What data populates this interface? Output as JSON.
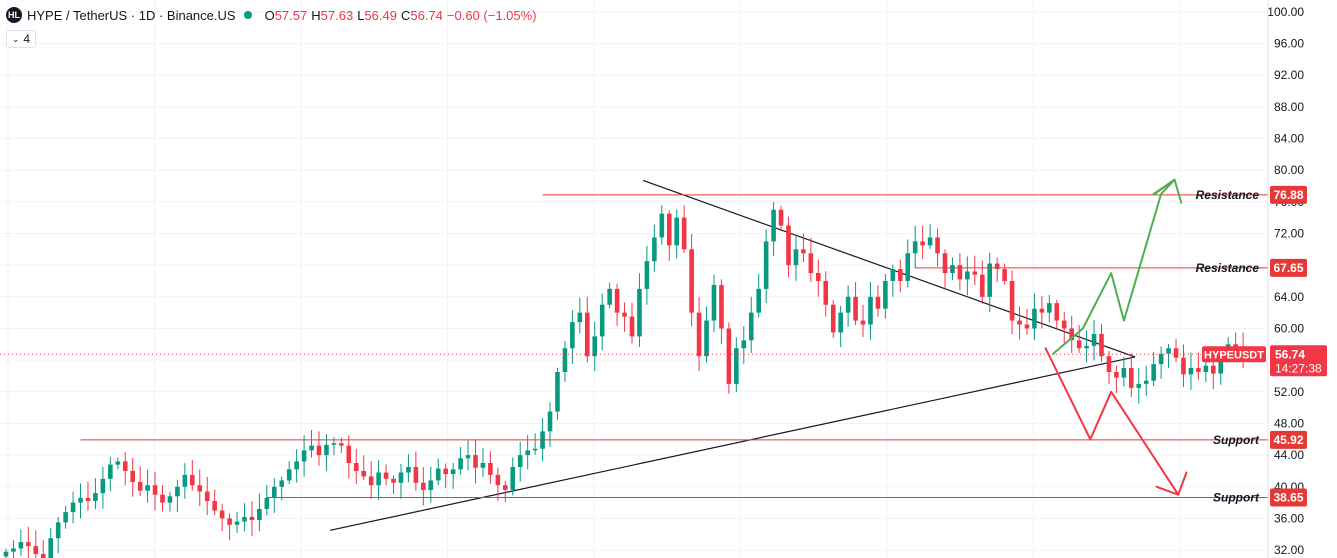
{
  "header": {
    "logo_text": "HL",
    "symbol": "HYPE / TetherUS · 1D · Binance.US",
    "open_label": "O",
    "open": "57.57",
    "high_label": "H",
    "high": "57.63",
    "low_label": "L",
    "low": "56.49",
    "close_label": "C",
    "close": "56.74",
    "change": "−0.60 (−1.05%)"
  },
  "indicator_toggle": {
    "count": "4",
    "icon": "chevron-down-icon"
  },
  "colors": {
    "up": "#089981",
    "down": "#f23645",
    "level": "#e53935",
    "trend": "#131722",
    "bull_arrow": "#4caf50",
    "bear_arrow": "#f23645"
  },
  "chart_data": {
    "type": "candlestick",
    "y_axis": {
      "min": 31,
      "max": 101.5,
      "ticks": [
        "32.00",
        "36.00",
        "40.00",
        "44.00",
        "48.00",
        "52.00",
        "56.00",
        "60.00",
        "64.00",
        "68.00",
        "72.00",
        "76.00",
        "80.00",
        "84.00",
        "88.00",
        "92.00",
        "96.00",
        "100.00"
      ],
      "position": "right"
    },
    "grid": true,
    "x_range": [
      0,
      168
    ],
    "candles_close": [
      31.8,
      32.2,
      33.0,
      32.5,
      31.5,
      31.0,
      33.5,
      35.5,
      36.8,
      38.0,
      38.6,
      38.2,
      39.2,
      41.0,
      42.8,
      43.2,
      42.0,
      40.6,
      39.5,
      40.2,
      39.0,
      38.0,
      38.8,
      40.0,
      41.5,
      40.2,
      39.4,
      38.2,
      37.0,
      36.0,
      35.2,
      35.6,
      36.2,
      35.8,
      37.2,
      38.6,
      40.0,
      40.8,
      42.2,
      43.2,
      44.6,
      45.2,
      44.0,
      45.3,
      45.5,
      45.2,
      43.0,
      42.0,
      41.3,
      40.2,
      41.8,
      41.0,
      40.5,
      41.8,
      42.5,
      40.5,
      39.6,
      40.8,
      42.3,
      41.6,
      42.2,
      43.6,
      44.0,
      42.4,
      43.0,
      41.5,
      40.2,
      39.6,
      42.5,
      44.0,
      44.6,
      44.8,
      47.0,
      49.5,
      54.5,
      57.5,
      60.8,
      62.0,
      56.5,
      59.0,
      63.0,
      65.0,
      62.0,
      61.5,
      59.0,
      65.0,
      68.5,
      71.5,
      74.5,
      70.5,
      74.0,
      70.0,
      62.0,
      56.5,
      61.0,
      65.5,
      60.0,
      53.0,
      57.5,
      58.5,
      62.0,
      65.0,
      71.0,
      75.0,
      73.0,
      68.0,
      70.0,
      69.5,
      67.0,
      66.0,
      63.0,
      59.5,
      62.0,
      64.0,
      61.0,
      60.5,
      64.0,
      62.5,
      66.0,
      67.5,
      66.0,
      69.5,
      71.0,
      70.5,
      71.5,
      69.5,
      67.0,
      68.0,
      66.2,
      67.2,
      66.8,
      64.0,
      68.2,
      67.5,
      66.0,
      61.0,
      60.5,
      60.0,
      62.5,
      62.0,
      63.2,
      61.0,
      60.0,
      58.5,
      57.5,
      57.8,
      59.3,
      56.5,
      54.5,
      53.8,
      55.0,
      52.5,
      53.0,
      53.4,
      55.5,
      56.8,
      57.5,
      56.3,
      54.2,
      55.0,
      54.5,
      55.3,
      54.3,
      56.5,
      58.0,
      57.6,
      56.74
    ],
    "horizontal_levels": [
      {
        "kind": "Resistance",
        "value": 76.88,
        "label": "76.88",
        "text": "Resistance",
        "start_x": 72
      },
      {
        "kind": "Resistance",
        "value": 67.65,
        "label": "67.65",
        "text": "Resistance",
        "start_x": 122
      },
      {
        "kind": "Support",
        "value": 45.92,
        "label": "45.92",
        "text": "Support",
        "start_x": 10
      },
      {
        "kind": "Support",
        "value": 38.65,
        "label": "38.65",
        "text": "Support",
        "start_x": 35
      }
    ],
    "current_price": {
      "symbol": "HYPEUSDT",
      "value": 56.74,
      "label": "56.74",
      "countdown": "14:27:38"
    },
    "trendlines": [
      {
        "from": [
          85.5,
          78.7
        ],
        "to": [
          151.5,
          56.4
        ]
      },
      {
        "from": [
          43.5,
          34.5
        ],
        "to": [
          151.5,
          56.4
        ]
      }
    ],
    "bull_path": [
      [
        140.5,
        56.8
      ],
      [
        144.5,
        60.0
      ],
      [
        148.3,
        67.0
      ],
      [
        150.0,
        61.0
      ],
      [
        155.0,
        77.0
      ],
      [
        156.8,
        78.8
      ],
      [
        154.0,
        77.0
      ]
    ],
    "bull_head": {
      "tip": [
        156.8,
        78.8
      ],
      "left": [
        154.0,
        76.9
      ],
      "right": [
        157.7,
        75.9
      ]
    },
    "bear_path": [
      [
        139.5,
        57.5
      ],
      [
        145.5,
        46.0
      ],
      [
        148.3,
        52.0
      ],
      [
        157.3,
        39.0
      ]
    ],
    "bear_head": {
      "tip": [
        157.3,
        39.0
      ],
      "left": [
        154.4,
        40.0
      ],
      "right": [
        158.4,
        41.8
      ]
    }
  }
}
